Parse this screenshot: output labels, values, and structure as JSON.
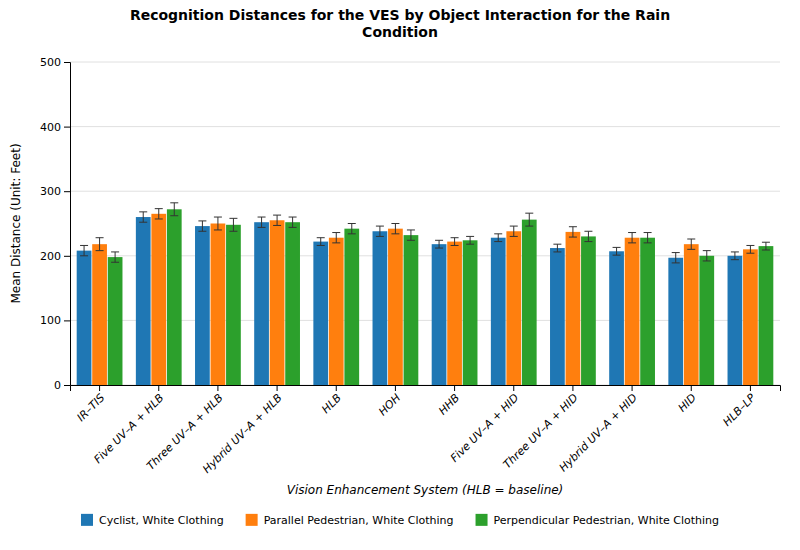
{
  "chart_data": {
    "type": "bar",
    "title": "Recognition Distances for the VES by Object Interaction for the Rain\nCondition",
    "xlabel": "Vision Enhancement System (HLB = baseline)",
    "ylabel": "Mean Distance (Unit: Feet)",
    "categories": [
      "IR–TIS",
      "Five UV–A + HLB",
      "Three UV–A + HLB",
      "Hybrid UV–A + HLB",
      "HLB",
      "HOH",
      "HHB",
      "Five UV–A + HID",
      "Three UV–A + HID",
      "Hybrid UV–A + HID",
      "HID",
      "HLB–LP"
    ],
    "series": [
      {
        "name": "Cyclist, White Clothing",
        "values": [
          208,
          260,
          246,
          252,
          222,
          238,
          218,
          228,
          212,
          207,
          197,
          200
        ],
        "errors": [
          8,
          8,
          8,
          8,
          6,
          8,
          6,
          6,
          6,
          6,
          8,
          6
        ]
      },
      {
        "name": "Parallel Pedestrian, White Clothing",
        "values": [
          218,
          265,
          250,
          255,
          228,
          242,
          222,
          238,
          237,
          228,
          218,
          210
        ],
        "errors": [
          10,
          8,
          10,
          8,
          8,
          8,
          6,
          8,
          8,
          8,
          8,
          6
        ]
      },
      {
        "name": "Perpendicular Pedestrian, White Clothing",
        "values": [
          198,
          272,
          248,
          252,
          242,
          232,
          224,
          256,
          230,
          228,
          200,
          215
        ],
        "errors": [
          8,
          10,
          10,
          8,
          8,
          8,
          6,
          10,
          8,
          8,
          8,
          6
        ]
      }
    ],
    "ylim": [
      0,
      500
    ],
    "yticks": [
      0,
      100,
      200,
      300,
      400,
      500
    ],
    "grid": true,
    "legend": "bottom"
  }
}
